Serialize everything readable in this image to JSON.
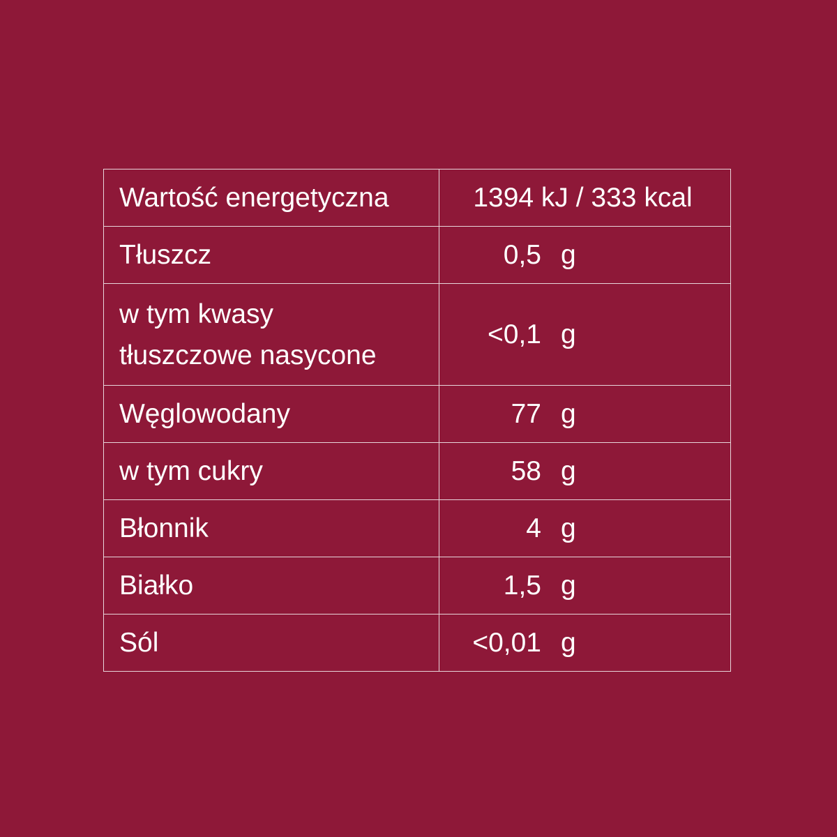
{
  "background_color": "#8e1838",
  "rows": [
    {
      "name": [
        "Wartość energetyczna"
      ],
      "value": "1394 kJ / 333 kcal"
    },
    {
      "name": [
        "Tłuszcz"
      ],
      "value": "0,5",
      "unit": "g"
    },
    {
      "name": [
        "w tym kwasy",
        "tłuszczowe nasycone"
      ],
      "value": "<0,1",
      "unit": "g"
    },
    {
      "name": [
        "Węglowodany"
      ],
      "value": "77",
      "unit": "g"
    },
    {
      "name": [
        "w tym cukry"
      ],
      "value": "58",
      "unit": "g"
    },
    {
      "name": [
        "Błonnik"
      ],
      "value": "4",
      "unit": "g"
    },
    {
      "name": [
        "Białko"
      ],
      "value": "1,5",
      "unit": "g"
    },
    {
      "name": [
        "Sól"
      ],
      "value": "<0,01",
      "unit": "g"
    }
  ]
}
